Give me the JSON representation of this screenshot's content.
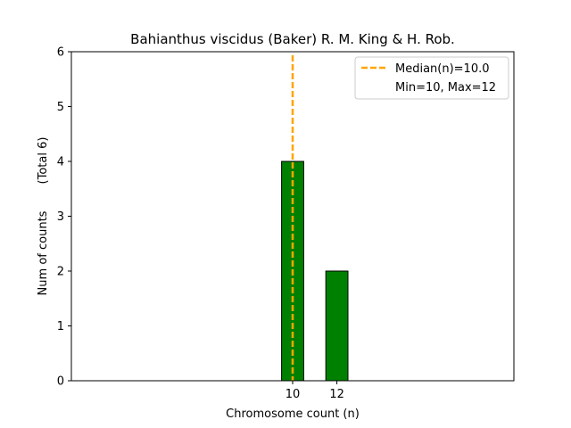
{
  "chart_data": {
    "type": "bar",
    "title": "Bahianthus viscidus (Baker) R. M. King & H. Rob.",
    "xlabel": "Chromosome count (n)",
    "ylabel": "Num of counts",
    "ylabel_extra": "(Total 6)",
    "x": [
      10,
      12
    ],
    "values": [
      4,
      2
    ],
    "bar_color": "#008000",
    "bar_edge_color": "#000000",
    "xlim": [
      0,
      20
    ],
    "ylim": [
      0,
      6
    ],
    "yticks": [
      0,
      1,
      2,
      3,
      4,
      5,
      6
    ],
    "xticks": [
      10,
      12
    ],
    "median": 10.0,
    "median_color": "#FFA500",
    "legend": {
      "position": "top-right",
      "entries": [
        "Median(n)=10.0",
        "Min=10, Max=12"
      ]
    },
    "grid": false
  }
}
